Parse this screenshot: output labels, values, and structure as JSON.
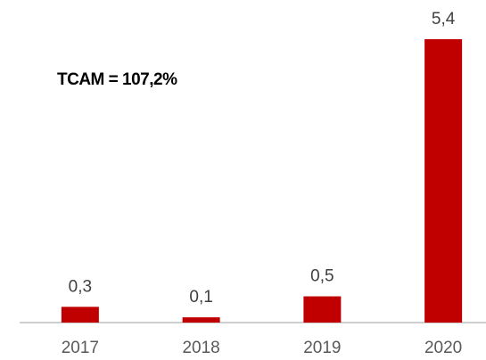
{
  "chart_data": {
    "type": "bar",
    "annotation": "TCAM = 107,2%",
    "categories": [
      "2017",
      "2018",
      "2019",
      "2020"
    ],
    "values": [
      0.3,
      0.1,
      0.5,
      5.4
    ],
    "value_labels": [
      "0,3",
      "0,1",
      "0,5",
      "5,4"
    ],
    "color": "#c00000"
  }
}
